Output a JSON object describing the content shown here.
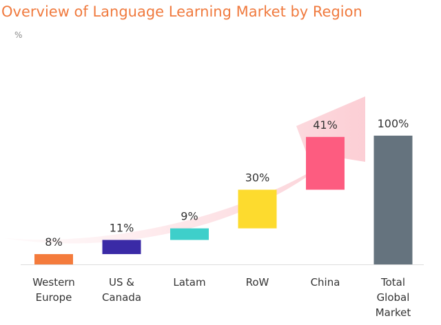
{
  "title": "Overview of Language Learning Market by Region",
  "unit": "%",
  "chart_data": {
    "type": "bar",
    "subtype": "waterfall",
    "title": "Overview of Language Learning Market by Region",
    "ylabel": "%",
    "ylim": [
      0,
      100
    ],
    "categories": [
      [
        "Western",
        "Europe"
      ],
      [
        "US &",
        "Canada"
      ],
      [
        "Latam"
      ],
      [
        "RoW"
      ],
      [
        "China"
      ],
      [
        "Total",
        "Global",
        "Market"
      ]
    ],
    "values": [
      8,
      11,
      9,
      30,
      41,
      100
    ],
    "labels": [
      "8%",
      "11%",
      "9%",
      "30%",
      "41%",
      "100%"
    ],
    "colors": [
      "#f47b3c",
      "#3a2aa6",
      "#3ecfca",
      "#fddb2e",
      "#fd5c80",
      "#65737e"
    ],
    "grid": false,
    "legend": "none"
  }
}
